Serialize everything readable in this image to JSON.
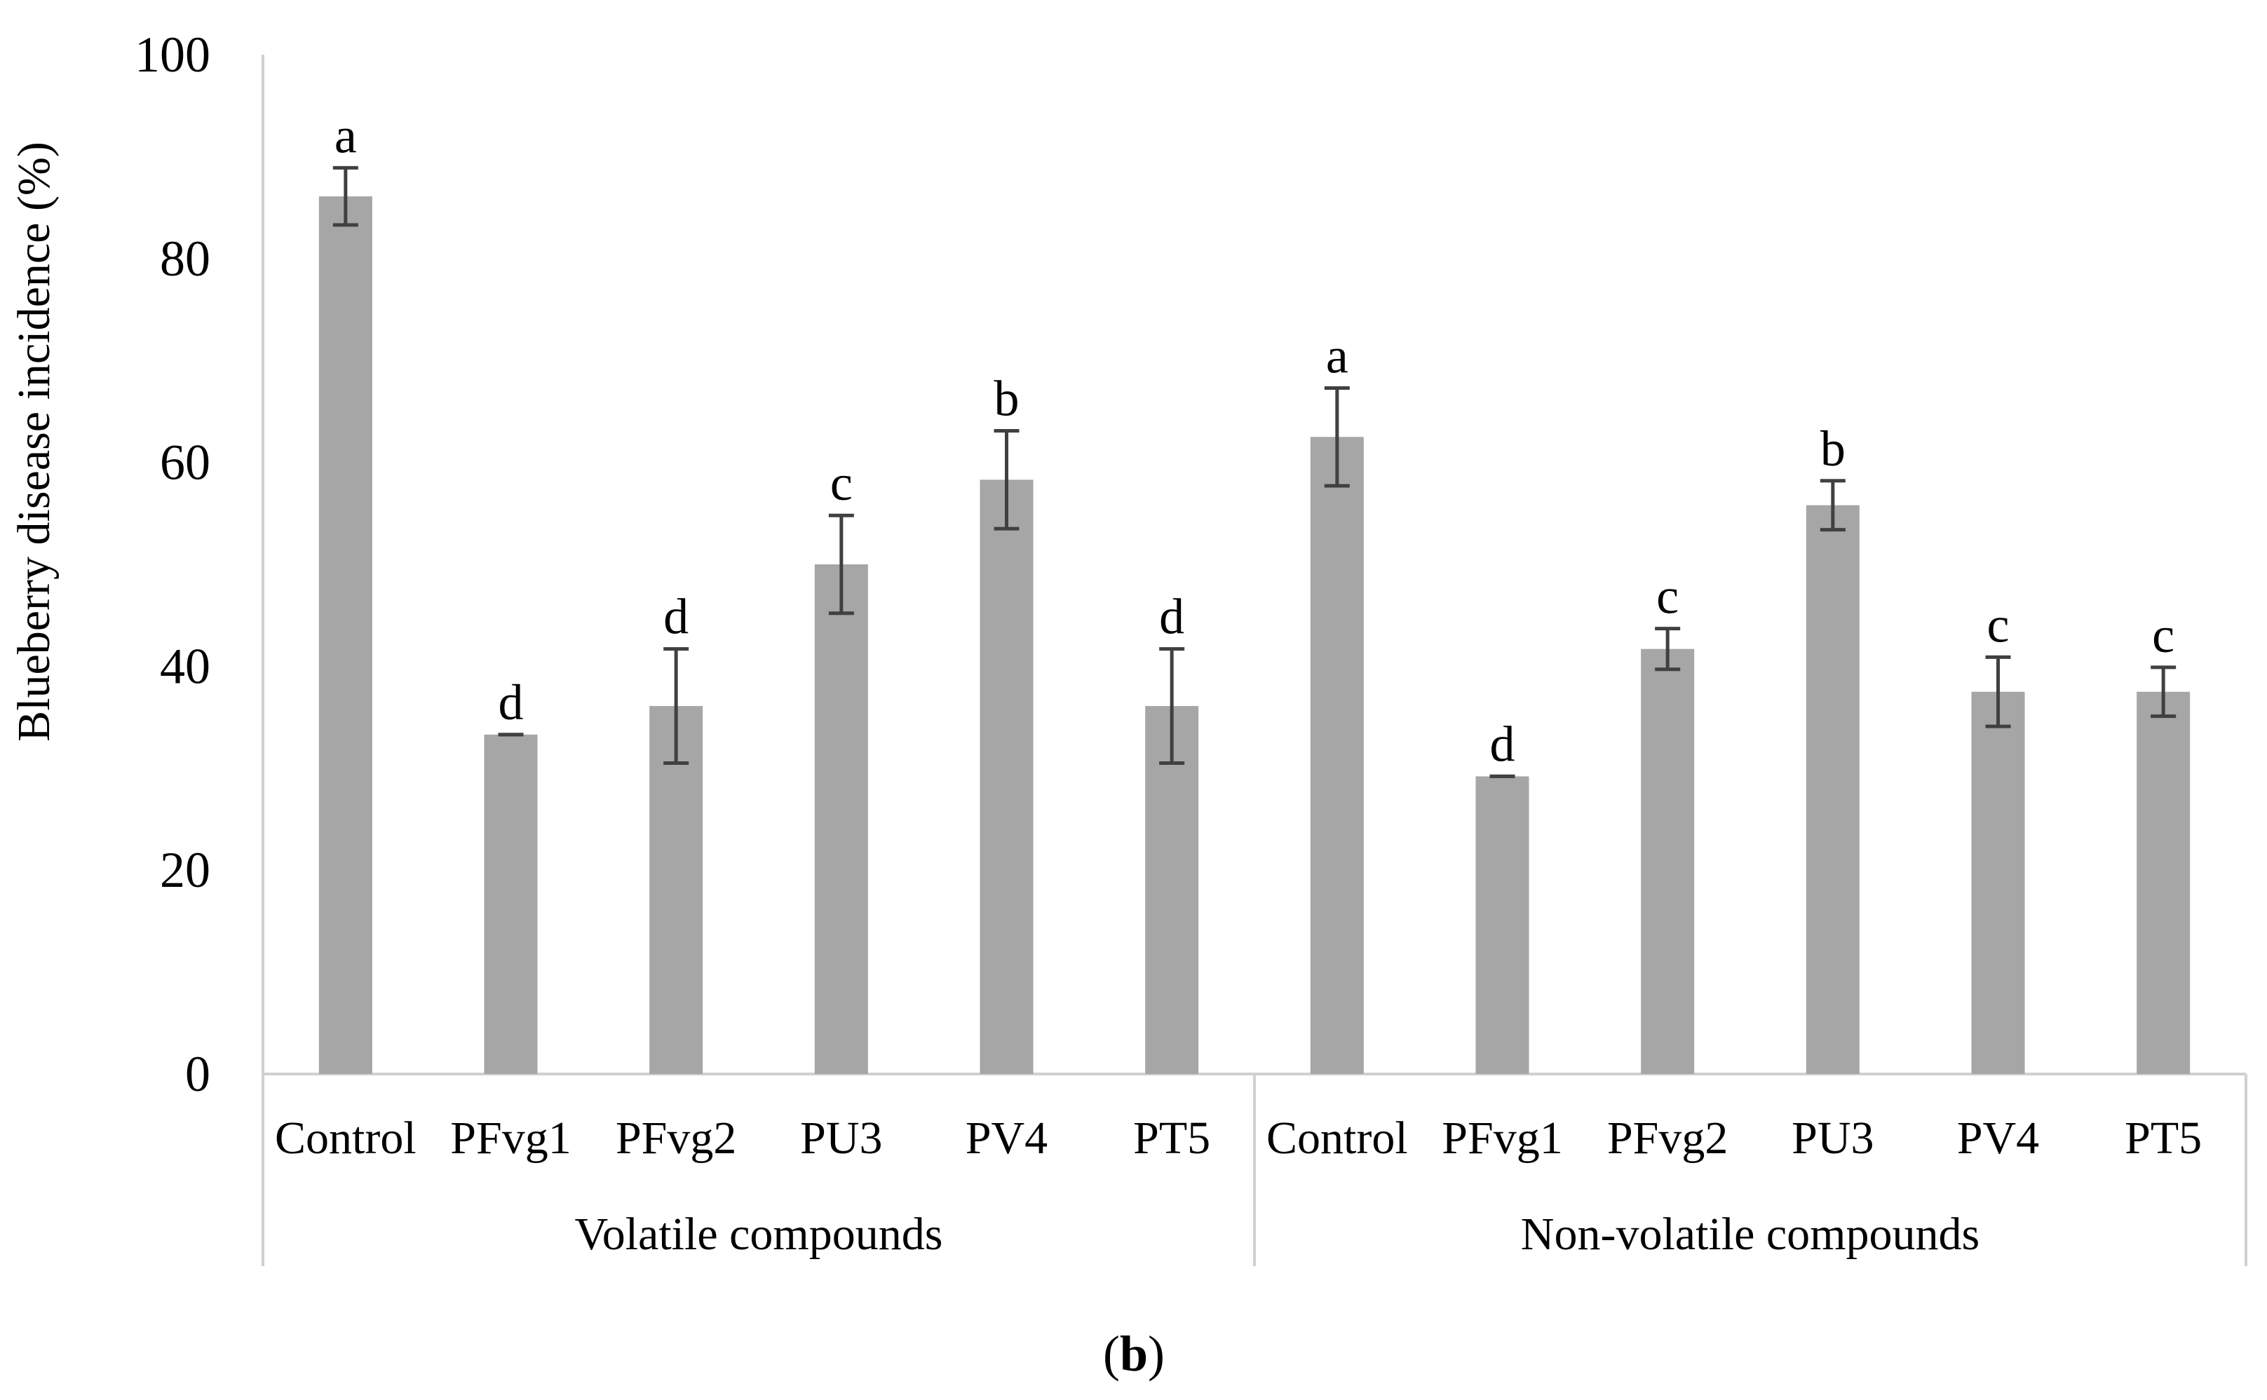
{
  "chart_data": {
    "type": "bar",
    "title": "",
    "xlabel": "",
    "ylabel": "Blueberry disease incidence (%)",
    "ylim": [
      0,
      100
    ],
    "yticks": [
      0,
      20,
      40,
      60,
      80,
      100
    ],
    "grid": false,
    "legend": "none",
    "panel_label": {
      "open": "(",
      "letter": "b",
      "close": ")"
    },
    "colors": {
      "bar": "#a6a6a6",
      "error": "#404040",
      "axis": "#d0d0d0"
    },
    "groups": [
      {
        "label": "Volatile compounds",
        "categories": [
          "Control",
          "PFvg1",
          "PFvg2",
          "PU3",
          "PV4",
          "PT5"
        ],
        "values": [
          86.1,
          33.3,
          36.1,
          50.0,
          58.3,
          36.1
        ],
        "errors": [
          2.8,
          0.0,
          5.6,
          4.8,
          4.8,
          5.6
        ],
        "significance": [
          "a",
          "d",
          "d",
          "c",
          "b",
          "d"
        ]
      },
      {
        "label": "Non-volatile compounds",
        "categories": [
          "Control",
          "PFvg1",
          "PFvg2",
          "PU3",
          "PV4",
          "PT5"
        ],
        "values": [
          62.5,
          29.2,
          41.7,
          55.8,
          37.5,
          37.5
        ],
        "errors": [
          4.8,
          0.0,
          2.0,
          2.4,
          3.4,
          2.4
        ],
        "significance": [
          "a",
          "d",
          "c",
          "b",
          "c",
          "c"
        ]
      }
    ]
  }
}
